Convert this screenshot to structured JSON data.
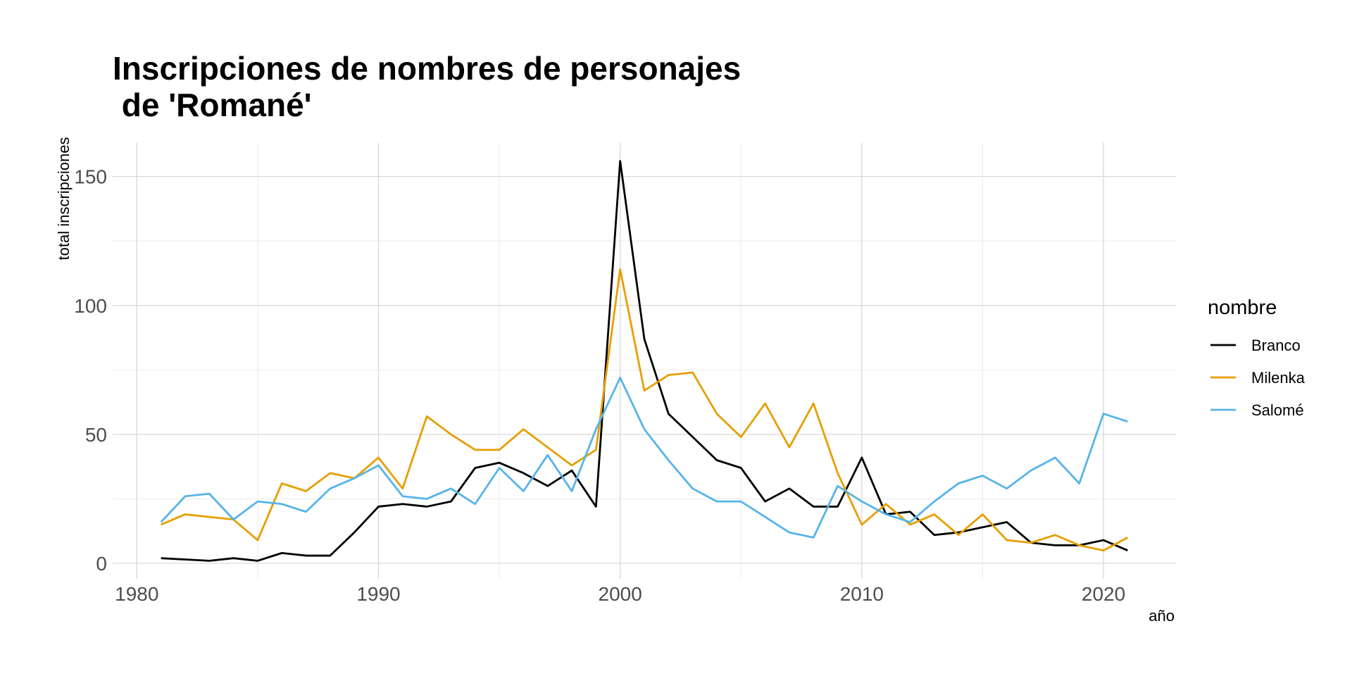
{
  "chart_data": {
    "type": "line",
    "title_lines": [
      "Inscripciones de nombres de personajes",
      " de 'Romané'"
    ],
    "xlabel": "año",
    "ylabel": "total inscripciones",
    "xlim": [
      1979,
      2023
    ],
    "ylim": [
      -6,
      163
    ],
    "x_ticks": [
      1980,
      1990,
      2000,
      2010,
      2020
    ],
    "x_minor_ticks": [
      1985,
      1995,
      2005,
      2015
    ],
    "y_ticks": [
      0,
      50,
      100,
      150
    ],
    "y_minor_ticks": [
      25,
      75,
      125
    ],
    "grid": true,
    "legend": {
      "title": "nombre",
      "position": "right"
    },
    "x": [
      1981,
      1982,
      1983,
      1984,
      1985,
      1986,
      1987,
      1988,
      1989,
      1990,
      1991,
      1992,
      1993,
      1994,
      1995,
      1996,
      1997,
      1998,
      1999,
      2000,
      2001,
      2002,
      2003,
      2004,
      2005,
      2006,
      2007,
      2008,
      2009,
      2010,
      2011,
      2012,
      2013,
      2014,
      2015,
      2016,
      2017,
      2018,
      2019,
      2020,
      2021
    ],
    "series": [
      {
        "name": "Branco",
        "color": "#000000",
        "values": [
          2,
          1.5,
          1,
          2,
          1,
          4,
          3,
          3,
          12,
          22,
          23,
          22,
          24,
          37,
          39,
          35,
          30,
          36,
          22,
          156,
          87,
          58,
          49,
          40,
          37,
          24,
          29,
          22,
          22,
          41,
          19,
          20,
          11,
          12,
          14,
          16,
          8,
          7,
          7,
          9,
          5
        ]
      },
      {
        "name": "Milenka",
        "color": "#E69F00",
        "values": [
          15,
          19,
          18,
          17,
          9,
          31,
          28,
          35,
          33,
          41,
          29,
          57,
          50,
          44,
          44,
          52,
          45,
          38,
          44,
          114,
          67,
          73,
          74,
          58,
          49,
          62,
          45,
          62,
          35,
          15,
          23,
          15,
          19,
          11,
          19,
          9,
          8,
          11,
          7,
          5,
          10
        ]
      },
      {
        "name": "Salomé",
        "color": "#56B4E9",
        "values": [
          16,
          26,
          27,
          17,
          24,
          23,
          20,
          29,
          33,
          38,
          26,
          25,
          29,
          23,
          37,
          28,
          42,
          28,
          52,
          72,
          52,
          40,
          29,
          24,
          24,
          18,
          12,
          10,
          30,
          24,
          19,
          16,
          24,
          31,
          34,
          29,
          36,
          41,
          31,
          58,
          55
        ]
      }
    ]
  }
}
